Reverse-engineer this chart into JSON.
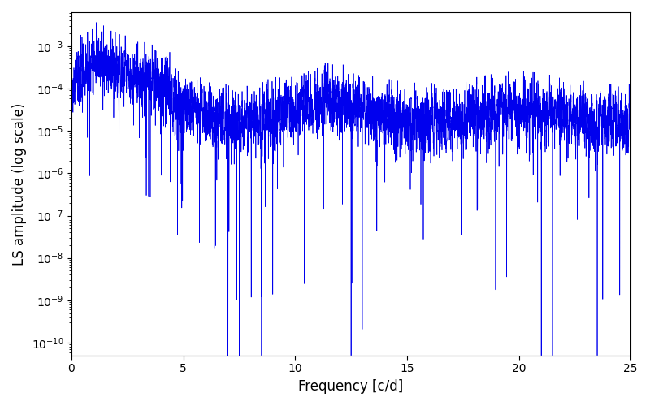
{
  "xlabel": "Frequency [c/d]",
  "ylabel": "LS amplitude (log scale)",
  "line_color": "#0000ee",
  "xlim": [
    0,
    25
  ],
  "ylim_log_min": -10.3,
  "ylim_log_max": -2.2,
  "background_color": "#ffffff",
  "figsize": [
    8.0,
    5.0
  ],
  "dpi": 100,
  "seed": 77,
  "n_points": 8000,
  "freq_max": 25.0
}
